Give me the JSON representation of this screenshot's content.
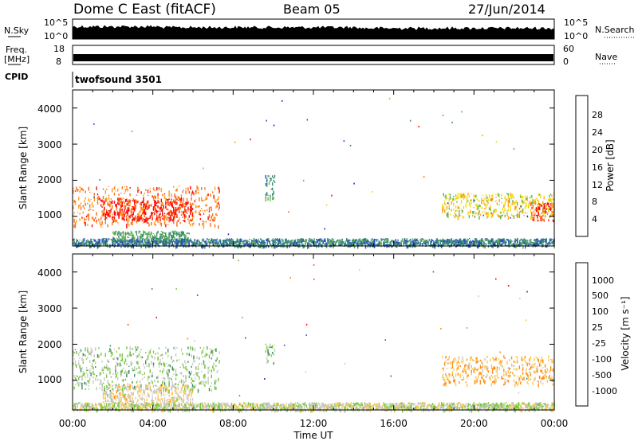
{
  "header": {
    "title": "Dome C East (fitACF)",
    "beam": "Beam 05",
    "date": "27/Jun/2014"
  },
  "nsky_panel": {
    "left_label": "N.Sky",
    "left_ticks": [
      "10^5",
      "10^0"
    ],
    "right_label": "N.Search",
    "right_ticks": [
      "10^5",
      "10^0"
    ]
  },
  "freq_panel": {
    "left_label_1": "Freq.",
    "left_label_2": "[MHz]",
    "left_ticks": [
      "18",
      "8"
    ],
    "right_label": "Nave",
    "right_ticks": [
      "60",
      "0"
    ]
  },
  "cpid": {
    "label": "CPID",
    "program": "twofsound 3501"
  },
  "x_axis": {
    "label": "Time UT",
    "ticks": [
      "00:00",
      "04:00",
      "08:00",
      "12:00",
      "16:00",
      "20:00",
      "00:00"
    ]
  },
  "power_panel": {
    "ylabel": "Slant Range [km]",
    "yticks": [
      "1000",
      "2000",
      "3000",
      "4000"
    ],
    "colorbar_label": "Power [dB]",
    "colorbar_ticks": [
      "4",
      "8",
      "12",
      "16",
      "20",
      "24",
      "28"
    ]
  },
  "velocity_panel": {
    "ylabel": "Slant Range [km]",
    "yticks": [
      "1000",
      "2000",
      "3000",
      "4000"
    ],
    "colorbar_label": "Velocity [m s⁻¹]",
    "colorbar_ticks": [
      "1000",
      "500",
      "100",
      "25",
      "-25",
      "-100",
      "-500",
      "-1000"
    ]
  },
  "colors": {
    "power_scale": [
      "#1428e6",
      "#2850b4",
      "#3c8c78",
      "#64b450",
      "#f0dc14",
      "#ffa01e",
      "#ff6e14",
      "#ff0a0a"
    ],
    "velocity_scale": [
      "#1e3ca0",
      "#3c6eb4",
      "#3c8c64",
      "#78c83c",
      "#c8c8c8",
      "#ffc850",
      "#ff8c14",
      "#ff5a0a",
      "#ff0a0a"
    ]
  },
  "chart_data": [
    {
      "type": "heatmap",
      "title": "Power",
      "x_unit": "hours UT",
      "xlim": [
        0,
        24
      ],
      "ylabel": "Slant Range [km]",
      "ylim": [
        180,
        4500
      ],
      "colorbar": {
        "label": "Power [dB]",
        "range": [
          0,
          32
        ]
      },
      "echo_regions": [
        {
          "t_start": 0.0,
          "t_end": 7.3,
          "range_min": 750,
          "range_max": 1850,
          "value": 25
        },
        {
          "t_start": 1.5,
          "t_end": 6.0,
          "range_min": 900,
          "range_max": 1500,
          "value": 30
        },
        {
          "t_start": 2.0,
          "t_end": 5.8,
          "range_min": 300,
          "range_max": 620,
          "value": 12
        },
        {
          "t_start": 9.6,
          "t_end": 10.1,
          "range_min": 1500,
          "range_max": 2150,
          "value": 10
        },
        {
          "t_start": 18.4,
          "t_end": 24.0,
          "range_min": 1000,
          "range_max": 1650,
          "value": 18
        },
        {
          "t_start": 22.8,
          "t_end": 24.0,
          "range_min": 900,
          "range_max": 1400,
          "value": 28
        },
        {
          "t_start": 0.0,
          "t_end": 24.0,
          "range_min": 200,
          "range_max": 400,
          "value": 9
        }
      ]
    },
    {
      "type": "heatmap",
      "title": "Velocity",
      "x_unit": "hours UT",
      "xlim": [
        0,
        24
      ],
      "ylabel": "Slant Range [km]",
      "ylim": [
        180,
        4500
      ],
      "colorbar": {
        "label": "Velocity [m s-1]",
        "range": [
          -1000,
          1000
        ]
      },
      "echo_regions": [
        {
          "t_start": 0.0,
          "t_end": 7.3,
          "range_min": 750,
          "range_max": 1950,
          "value": -150
        },
        {
          "t_start": 1.5,
          "t_end": 6.0,
          "range_min": 400,
          "range_max": 900,
          "value": 120
        },
        {
          "t_start": 9.6,
          "t_end": 10.1,
          "range_min": 1500,
          "range_max": 2050,
          "value": -150
        },
        {
          "t_start": 18.4,
          "t_end": 24.0,
          "range_min": 900,
          "range_max": 1700,
          "value": 300
        },
        {
          "t_start": 0.0,
          "t_end": 24.0,
          "range_min": 200,
          "range_max": 400,
          "value": -20
        }
      ]
    }
  ]
}
